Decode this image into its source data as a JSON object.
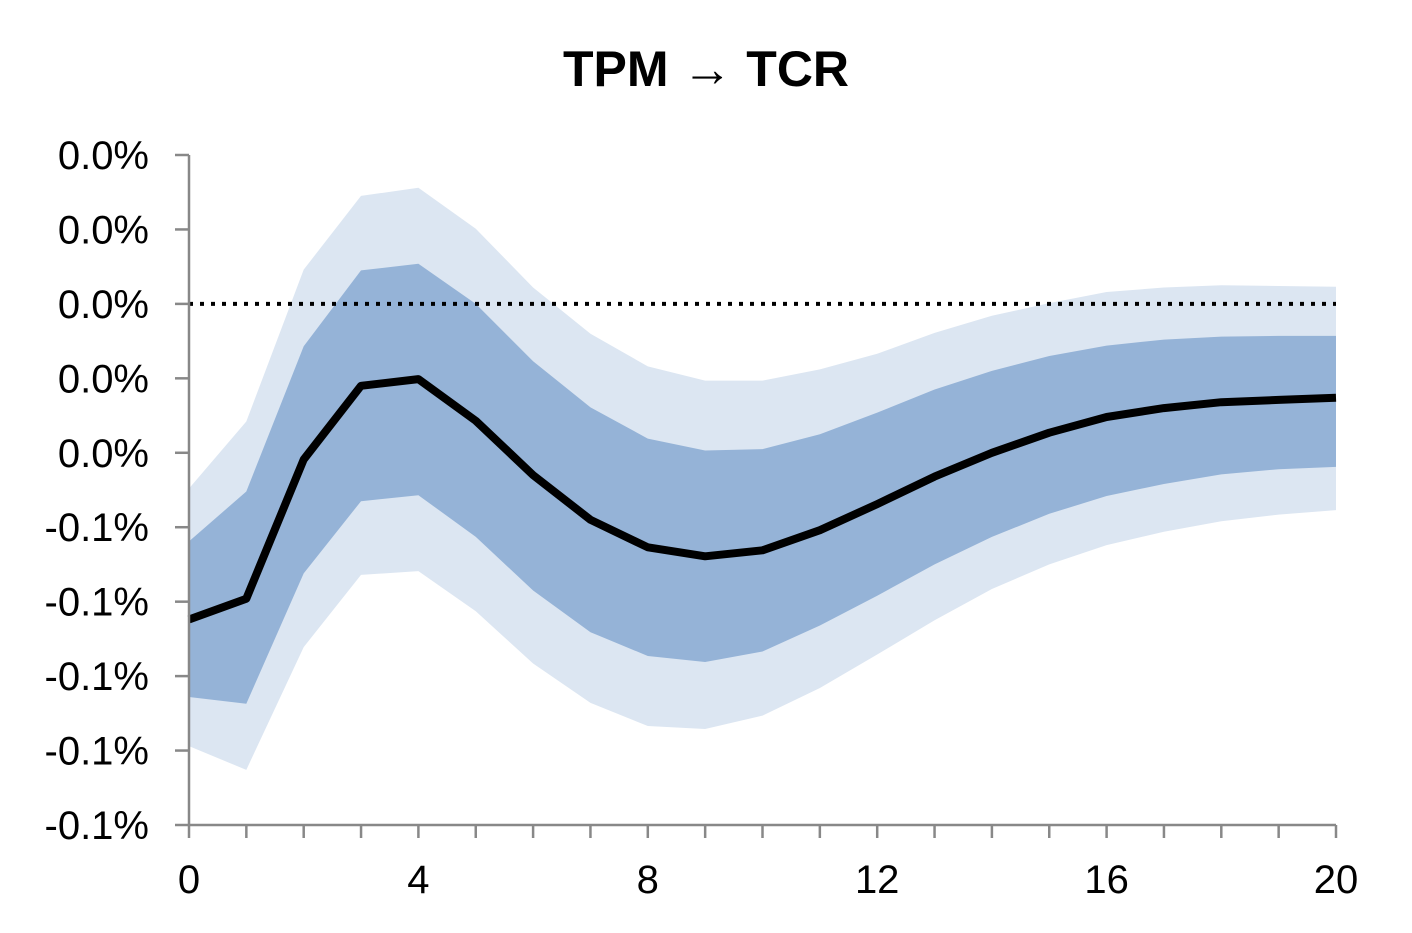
{
  "chart_data": {
    "type": "area",
    "title": "TPM → TCR",
    "xlabel": "",
    "ylabel": "",
    "x": [
      0,
      1,
      2,
      3,
      4,
      5,
      6,
      7,
      8,
      9,
      10,
      11,
      12,
      13,
      14,
      15,
      16,
      17,
      18,
      19,
      20
    ],
    "xlim": [
      0,
      20
    ],
    "x_ticks": [
      0,
      4,
      8,
      12,
      16,
      20
    ],
    "ylim": [
      -0.09,
      0.0
    ],
    "y_ticks": [
      0.0,
      -0.01,
      -0.02,
      -0.03,
      -0.04,
      -0.05,
      -0.06,
      -0.07,
      -0.08,
      -0.09
    ],
    "y_tick_labels": [
      "0.0%",
      "0.0%",
      "0.0%",
      "0.0%",
      "0.0%",
      "-0.1%",
      "-0.1%",
      "-0.1%",
      "-0.1%",
      "-0.1%"
    ],
    "reference_line": {
      "y": -0.02,
      "style": "dotted"
    },
    "colors": {
      "outer_band": "#dce6f2",
      "inner_band": "#95b3d7",
      "median": "#000000",
      "axis": "#888888"
    },
    "series": [
      {
        "role": "outer-band-upper",
        "values": [
          -0.0448,
          -0.0358,
          -0.0154,
          -0.0055,
          -0.0044,
          -0.0099,
          -0.0178,
          -0.024,
          -0.0284,
          -0.0303,
          -0.0303,
          -0.0288,
          -0.0267,
          -0.0239,
          -0.0216,
          -0.0199,
          -0.0184,
          -0.0178,
          -0.0175,
          -0.0176,
          -0.0177
        ]
      },
      {
        "role": "inner-band-upper",
        "values": [
          -0.0519,
          -0.0452,
          -0.0257,
          -0.0155,
          -0.0146,
          -0.02,
          -0.0277,
          -0.0339,
          -0.0381,
          -0.0397,
          -0.0395,
          -0.0375,
          -0.0346,
          -0.0315,
          -0.029,
          -0.027,
          -0.0256,
          -0.0248,
          -0.0244,
          -0.0243,
          -0.0243
        ]
      },
      {
        "role": "median",
        "values": [
          -0.0624,
          -0.0596,
          -0.0409,
          -0.031,
          -0.0301,
          -0.0357,
          -0.043,
          -0.049,
          -0.0527,
          -0.0539,
          -0.0531,
          -0.0504,
          -0.0469,
          -0.0432,
          -0.04,
          -0.0373,
          -0.0352,
          -0.034,
          -0.0332,
          -0.0329,
          -0.0326
        ]
      },
      {
        "role": "inner-band-lower",
        "values": [
          -0.0728,
          -0.0737,
          -0.0562,
          -0.0465,
          -0.0457,
          -0.0513,
          -0.0585,
          -0.0641,
          -0.0673,
          -0.0681,
          -0.0667,
          -0.0632,
          -0.0592,
          -0.055,
          -0.0513,
          -0.0482,
          -0.0458,
          -0.0442,
          -0.0429,
          -0.0422,
          -0.0419
        ]
      },
      {
        "role": "outer-band-lower",
        "values": [
          -0.0794,
          -0.0826,
          -0.0661,
          -0.0564,
          -0.0559,
          -0.0613,
          -0.0683,
          -0.0736,
          -0.0767,
          -0.0771,
          -0.0753,
          -0.0716,
          -0.0671,
          -0.0625,
          -0.0583,
          -0.055,
          -0.0524,
          -0.0506,
          -0.0492,
          -0.0483,
          -0.0477
        ]
      }
    ]
  }
}
